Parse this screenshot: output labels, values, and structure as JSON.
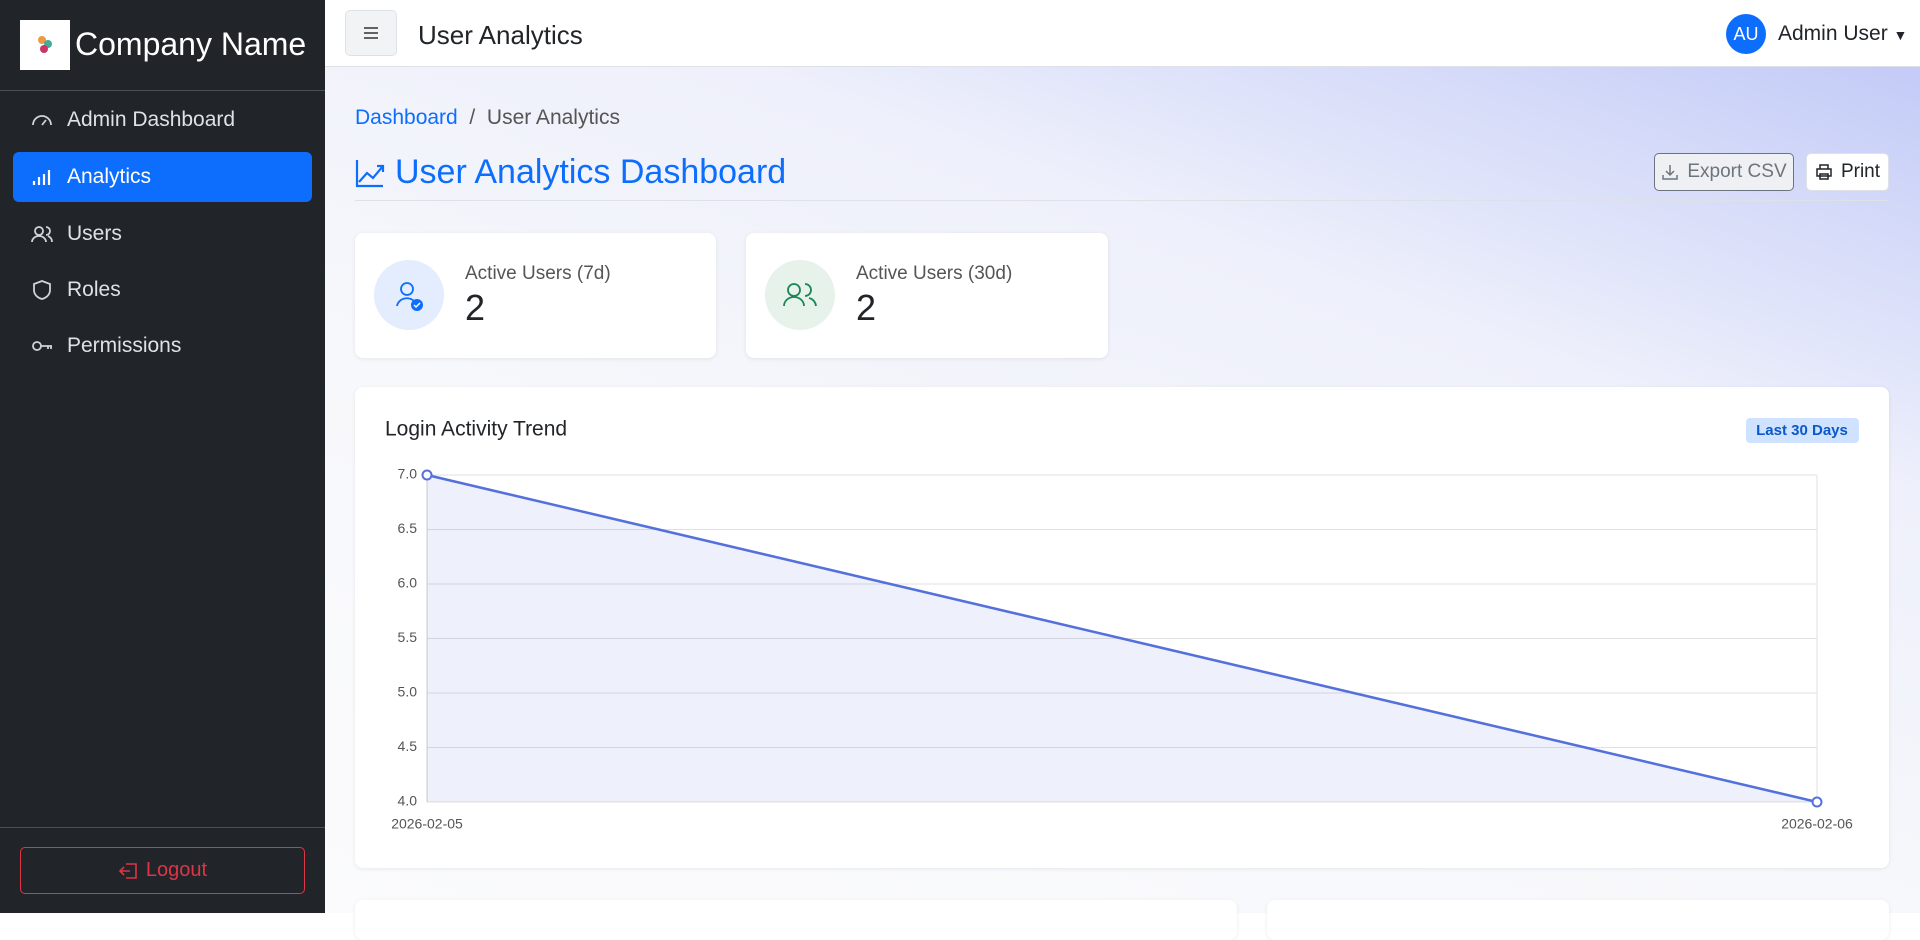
{
  "sidebar": {
    "brand": "Company Name",
    "nav": [
      "Admin Dashboard",
      "Analytics",
      "Users",
      "Roles",
      "Permissions"
    ],
    "logout": "Logout"
  },
  "header": {
    "title": "User Analytics",
    "avatar": "AU",
    "user": "Admin User"
  },
  "breadcrumb": [
    "Dashboard",
    "User Analytics"
  ],
  "page": {
    "title": "User Analytics Dashboard",
    "buttons": [
      "Export CSV",
      "Print"
    ]
  },
  "stats": [
    {
      "label": "Active Users (7d)",
      "value": 2
    },
    {
      "label": "Active Users (30d)",
      "value": 2
    }
  ],
  "chart_data": {
    "type": "line",
    "title": "Login Activity Trend",
    "badge": "Last 30 Days",
    "categories": [
      "2026-02-05",
      "2026-02-06"
    ],
    "values": [
      7,
      4
    ],
    "color": "#5470dd",
    "ylim": [
      4,
      7
    ],
    "yticks": [
      {
        "value": 4,
        "label": "4.0"
      },
      {
        "value": 4.5,
        "label": "4.5"
      },
      {
        "value": 5,
        "label": "5.0"
      },
      {
        "value": 5.5,
        "label": "5.5"
      },
      {
        "value": 6,
        "label": "6.0"
      },
      {
        "value": 6.5,
        "label": "6.5"
      },
      {
        "value": 7,
        "label": "7.0"
      }
    ],
    "grid": true
  }
}
